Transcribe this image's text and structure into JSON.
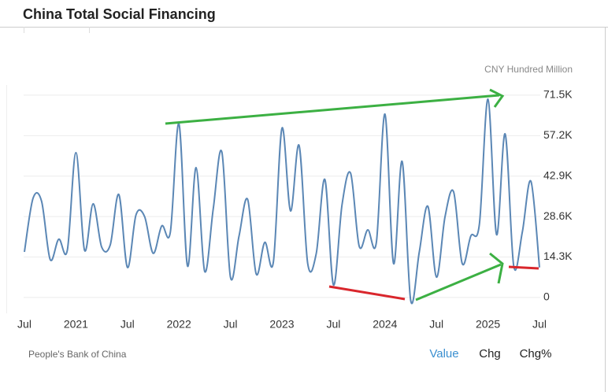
{
  "chart_data": {
    "type": "line",
    "title": "China Total Social Financing",
    "unit": "CNY Hundred Million",
    "source": "People's Bank of China",
    "tabs": [
      "Value",
      "Chg",
      "Chg%"
    ],
    "active_tab": 0,
    "categories": [
      "Jul",
      null,
      null,
      null,
      null,
      null,
      "2021",
      null,
      null,
      null,
      null,
      null,
      "Jul",
      null,
      null,
      null,
      null,
      null,
      "2022",
      null,
      null,
      null,
      null,
      null,
      "Jul",
      null,
      null,
      null,
      null,
      null,
      "2023",
      null,
      null,
      null,
      null,
      null,
      "Jul",
      null,
      null,
      null,
      null,
      null,
      "2024",
      null,
      null,
      null,
      null,
      null,
      "Jul",
      null,
      null,
      null,
      null,
      null,
      "2025",
      null,
      null,
      null,
      null,
      null,
      "Jul"
    ],
    "series": [
      {
        "name": "China Total Social Financing",
        "color": "#5b87b5",
        "values": [
          16100,
          35000,
          34000,
          13400,
          20600,
          16700,
          51200,
          16700,
          33100,
          17800,
          18600,
          36400,
          10600,
          29200,
          28600,
          15600,
          25300,
          23100,
          61400,
          11100,
          45900,
          9200,
          31400,
          51400,
          7200,
          21700,
          34700,
          8300,
          19500,
          12500,
          59800,
          30600,
          53700,
          12000,
          15600,
          41700,
          4400,
          32800,
          43900,
          18100,
          23900,
          19500,
          64800,
          12000,
          48100,
          -1100,
          16100,
          32200,
          7200,
          28600,
          37300,
          12000,
          21700,
          25900,
          70100,
          22200,
          57800,
          11100,
          23100,
          41100,
          10600
        ]
      }
    ],
    "ylim": [
      -5600,
      75100
    ],
    "yticks": [
      0,
      {
        "value": 14300,
        "label": "14.3K"
      },
      {
        "value": 28600,
        "label": "28.6K"
      },
      {
        "value": 42900,
        "label": "42.9K"
      },
      {
        "value": 57200,
        "label": "57.2K"
      },
      {
        "value": 71500,
        "label": "71.5K"
      }
    ],
    "grid": true
  }
}
